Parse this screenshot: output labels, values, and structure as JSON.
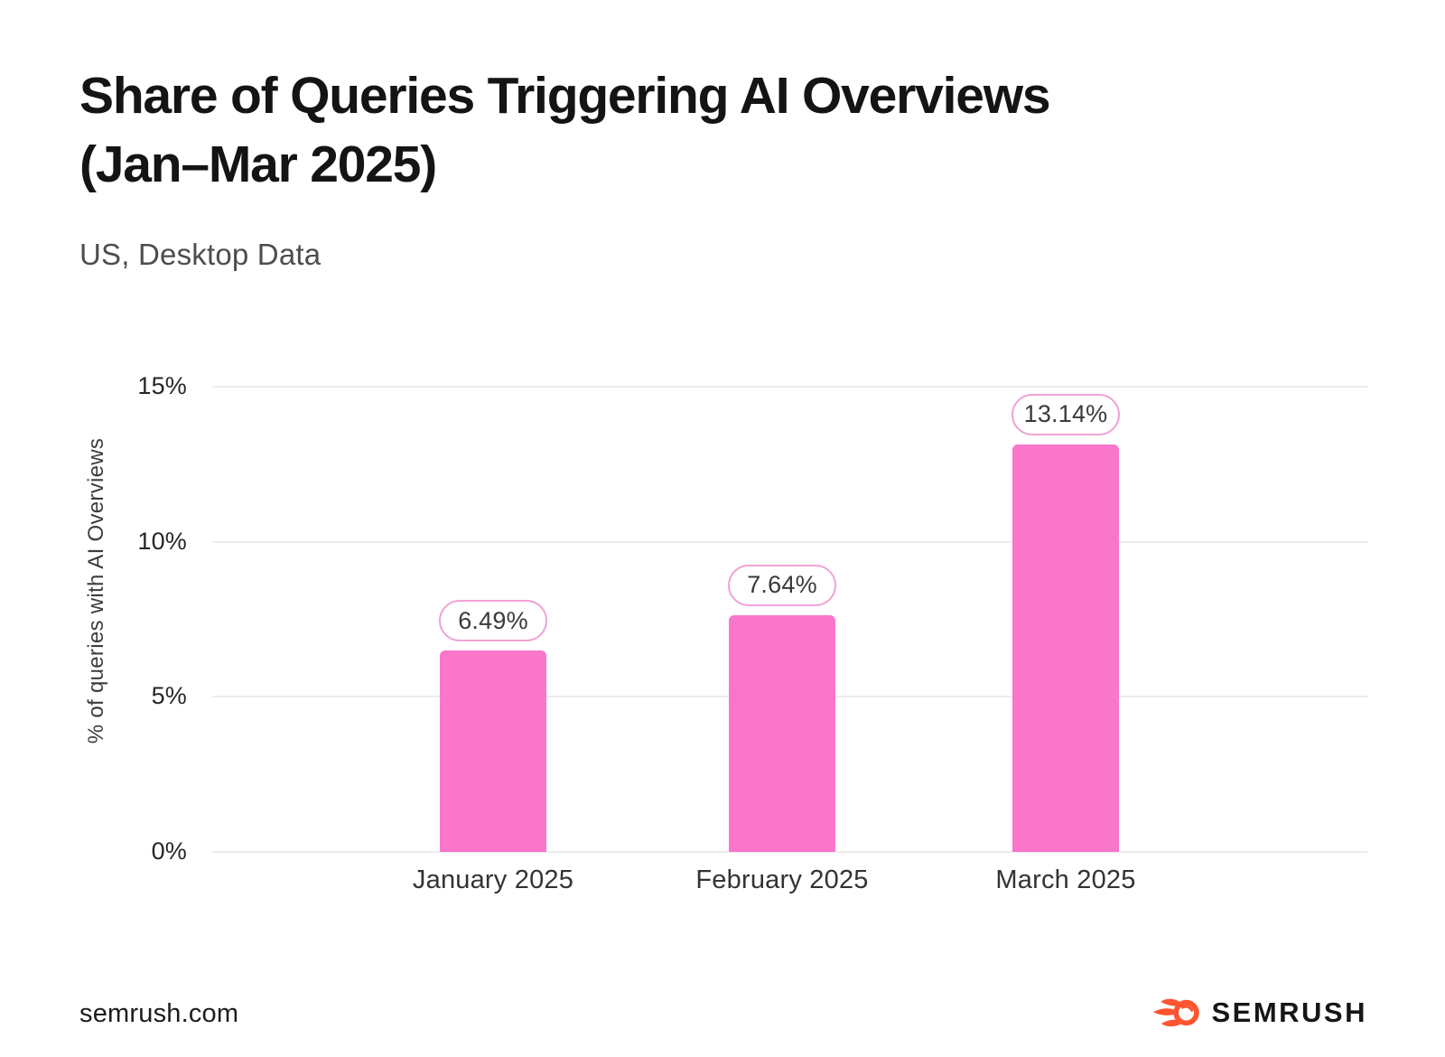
{
  "header": {
    "title_line1": "Share of Queries Triggering AI Overviews",
    "title_line2": "(Jan–Mar 2025)",
    "subtitle": "US, Desktop Data"
  },
  "chart_data": {
    "type": "bar",
    "title": "Share of Queries Triggering AI Overviews (Jan–Mar 2025)",
    "subtitle": "US, Desktop Data",
    "categories": [
      "January 2025",
      "February 2025",
      "March 2025"
    ],
    "values": [
      6.49,
      7.64,
      13.14
    ],
    "value_labels": [
      "6.49%",
      "7.64%",
      "13.14%"
    ],
    "xlabel": "",
    "ylabel": "% of queries with AI Overviews",
    "ylim": [
      0,
      15
    ],
    "yticks": [
      0,
      5,
      10,
      15
    ],
    "ytick_labels": [
      "0%",
      "5%",
      "10%",
      "15%"
    ],
    "grid": "horizontal",
    "legend": "none",
    "colors": {
      "bar": "#F976CB",
      "value_pill_border": "#F0A3D6",
      "value_pill_bg": "#FFFFFF",
      "gridline": "#ECECEC",
      "tick_text": "#262626",
      "axis_title_text": "#3D3D3D"
    }
  },
  "footer": {
    "site": "semrush.com",
    "logo_text": "SEMRUSH",
    "logo_icon": "semrush-flame-icon",
    "logo_orange": "#FF5430",
    "logo_text_color": "#161616"
  }
}
